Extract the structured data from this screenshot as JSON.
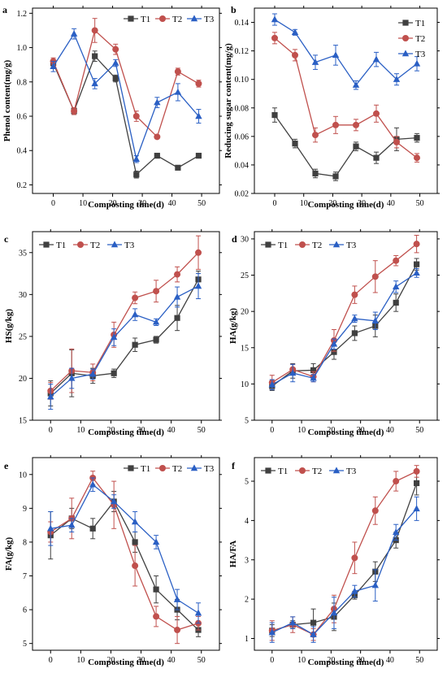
{
  "colors": {
    "T1": "#404040",
    "T2": "#c0504d",
    "T3": "#2a5fc4"
  },
  "chart_data": [
    {
      "panel": "a",
      "type": "line",
      "xlabel": "Composting time(d)",
      "ylabel": "Phenol content(mg/g)",
      "xlim": [
        -7,
        56
      ],
      "ylim": [
        0.15,
        1.23
      ],
      "xticks": [
        0,
        10,
        20,
        30,
        40,
        50
      ],
      "yticks": [
        0.2,
        0.4,
        0.6,
        0.8,
        1.0,
        1.2
      ],
      "ytick_labels": [
        "0.2",
        "0.4",
        "0.6",
        "0.8",
        "1.0",
        "1.2"
      ],
      "x": [
        0,
        7,
        14,
        21,
        28,
        35,
        42,
        49
      ],
      "legend": "top-right-row",
      "series": [
        {
          "name": "T1",
          "marker": "square",
          "values": [
            0.91,
            0.63,
            0.95,
            0.82,
            0.26,
            0.37,
            0.3,
            0.37
          ],
          "errors": [
            0.02,
            0.02,
            0.03,
            0.02,
            0.02,
            0.01,
            0.01,
            0.01
          ]
        },
        {
          "name": "T2",
          "marker": "circle",
          "values": [
            0.92,
            0.63,
            1.1,
            0.99,
            0.6,
            0.48,
            0.86,
            0.79
          ],
          "errors": [
            0.02,
            0.02,
            0.07,
            0.03,
            0.03,
            0.01,
            0.02,
            0.02
          ]
        },
        {
          "name": "T3",
          "marker": "triangle",
          "values": [
            0.89,
            1.08,
            0.79,
            0.91,
            0.35,
            0.68,
            0.74,
            0.6
          ],
          "errors": [
            0.03,
            0.03,
            0.03,
            0.02,
            0.02,
            0.03,
            0.05,
            0.04
          ]
        }
      ]
    },
    {
      "panel": "b",
      "type": "line",
      "xlabel": "Composting time(d)",
      "ylabel": "Reducing sugar content(mg/g)",
      "xlim": [
        -7,
        56
      ],
      "ylim": [
        0.02,
        0.15
      ],
      "xticks": [
        0,
        10,
        20,
        30,
        40,
        50
      ],
      "yticks": [
        0.02,
        0.04,
        0.06,
        0.08,
        0.1,
        0.12,
        0.14
      ],
      "ytick_labels": [
        "0.02",
        "0.04",
        "0.06",
        "0.08",
        "0.10",
        "0.12",
        "0.14"
      ],
      "x": [
        0,
        7,
        14,
        21,
        28,
        35,
        42,
        49
      ],
      "legend": "top-right-column",
      "series": [
        {
          "name": "T1",
          "marker": "square",
          "values": [
            0.075,
            0.055,
            0.034,
            0.032,
            0.053,
            0.045,
            0.058,
            0.059
          ],
          "errors": [
            0.005,
            0.003,
            0.003,
            0.003,
            0.003,
            0.004,
            0.008,
            0.003
          ]
        },
        {
          "name": "T2",
          "marker": "circle",
          "values": [
            0.129,
            0.117,
            0.061,
            0.068,
            0.068,
            0.076,
            0.056,
            0.045
          ],
          "errors": [
            0.004,
            0.004,
            0.005,
            0.006,
            0.004,
            0.006,
            0.004,
            0.003
          ]
        },
        {
          "name": "T3",
          "marker": "triangle",
          "values": [
            0.142,
            0.133,
            0.112,
            0.117,
            0.096,
            0.114,
            0.1,
            0.111
          ],
          "errors": [
            0.004,
            0.002,
            0.005,
            0.007,
            0.003,
            0.005,
            0.004,
            0.005
          ]
        }
      ]
    },
    {
      "panel": "c",
      "type": "line",
      "xlabel": "Composting time(d)",
      "ylabel": "HS(g/kg)",
      "xlim": [
        -6,
        56
      ],
      "ylim": [
        15,
        37.5
      ],
      "xticks": [
        0,
        10,
        20,
        30,
        40,
        50
      ],
      "yticks": [
        15,
        20,
        25,
        30,
        35
      ],
      "ytick_labels": [
        "15",
        "20",
        "25",
        "30",
        "35"
      ],
      "x": [
        0,
        7,
        14,
        21,
        28,
        35,
        42,
        49
      ],
      "legend": "top-left-row",
      "series": [
        {
          "name": "T1",
          "marker": "square",
          "values": [
            18.2,
            20.6,
            20.3,
            20.6,
            24.0,
            24.6,
            27.2,
            31.8
          ],
          "errors": [
            1.5,
            2.8,
            0.9,
            0.5,
            0.8,
            0.4,
            1.5,
            1.0
          ]
        },
        {
          "name": "T2",
          "marker": "circle",
          "values": [
            18.5,
            20.9,
            20.7,
            25.2,
            29.6,
            30.4,
            32.4,
            35.0
          ],
          "errors": [
            1.0,
            2.6,
            1.0,
            1.5,
            0.7,
            1.3,
            0.9,
            2.0
          ]
        },
        {
          "name": "T3",
          "marker": "triangle",
          "values": [
            17.8,
            20.0,
            20.5,
            24.9,
            27.6,
            26.7,
            29.7,
            31.0
          ],
          "errors": [
            1.5,
            1.2,
            0.6,
            1.0,
            0.7,
            0.4,
            1.2,
            1.5
          ]
        }
      ]
    },
    {
      "panel": "d",
      "type": "line",
      "xlabel": "Composting time(d)",
      "ylabel": "HA(g/kg)",
      "xlim": [
        -6,
        56
      ],
      "ylim": [
        5,
        31
      ],
      "xticks": [
        0,
        10,
        20,
        30,
        40,
        50
      ],
      "yticks": [
        5,
        10,
        15,
        20,
        25,
        30
      ],
      "ytick_labels": [
        "5",
        "10",
        "15",
        "20",
        "25",
        "30"
      ],
      "x": [
        0,
        7,
        14,
        21,
        28,
        35,
        42,
        49
      ],
      "legend": "top-left-row",
      "series": [
        {
          "name": "T1",
          "marker": "square",
          "values": [
            9.7,
            11.8,
            11.9,
            14.4,
            17.0,
            18.0,
            21.2,
            26.5
          ],
          "errors": [
            0.6,
            1.0,
            0.9,
            1.0,
            1.0,
            1.5,
            1.2,
            0.8
          ]
        },
        {
          "name": "T2",
          "marker": "circle",
          "values": [
            10.2,
            12.0,
            11.0,
            16.0,
            22.3,
            24.8,
            27.0,
            29.3
          ],
          "errors": [
            1.0,
            0.7,
            0.7,
            1.5,
            1.2,
            2.2,
            0.7,
            1.2
          ]
        },
        {
          "name": "T3",
          "marker": "triangle",
          "values": [
            9.9,
            11.5,
            10.8,
            15.5,
            19.0,
            18.7,
            23.4,
            25.3
          ],
          "errors": [
            0.7,
            1.2,
            0.5,
            0.7,
            0.5,
            1.2,
            0.8,
            0.6
          ]
        }
      ]
    },
    {
      "panel": "e",
      "type": "line",
      "xlabel": "Composting time(d)",
      "ylabel": "FA(g/kg)",
      "xlim": [
        -6,
        56
      ],
      "ylim": [
        4.8,
        10.5
      ],
      "xticks": [
        0,
        10,
        20,
        30,
        40,
        50
      ],
      "yticks": [
        5,
        6,
        7,
        8,
        9,
        10
      ],
      "ytick_labels": [
        "5",
        "6",
        "7",
        "8",
        "9",
        "10"
      ],
      "x": [
        0,
        7,
        14,
        21,
        28,
        35,
        42,
        49
      ],
      "legend": "top-right-row",
      "series": [
        {
          "name": "T1",
          "marker": "square",
          "values": [
            8.2,
            8.7,
            8.4,
            9.2,
            8.0,
            6.6,
            6.0,
            5.4
          ],
          "errors": [
            0.7,
            0.3,
            0.3,
            0.3,
            0.3,
            0.4,
            0.3,
            0.2
          ]
        },
        {
          "name": "T2",
          "marker": "circle",
          "values": [
            8.3,
            8.7,
            9.9,
            9.1,
            7.3,
            5.8,
            5.4,
            5.6
          ],
          "errors": [
            0.3,
            0.6,
            0.2,
            0.7,
            0.6,
            0.3,
            0.4,
            0.2
          ]
        },
        {
          "name": "T3",
          "marker": "triangle",
          "values": [
            8.4,
            8.5,
            9.7,
            9.2,
            8.6,
            8.0,
            6.3,
            5.9
          ],
          "errors": [
            0.5,
            0.2,
            0.2,
            0.2,
            0.3,
            0.2,
            0.3,
            0.3
          ]
        }
      ]
    },
    {
      "panel": "f",
      "type": "line",
      "xlabel": "Composting time(d)",
      "ylabel": "HA/FA",
      "xlim": [
        -6,
        56
      ],
      "ylim": [
        0.7,
        5.6
      ],
      "xticks": [
        0,
        10,
        20,
        30,
        40,
        50
      ],
      "yticks": [
        1,
        2,
        3,
        4,
        5
      ],
      "ytick_labels": [
        "1",
        "2",
        "3",
        "4",
        "5"
      ],
      "x": [
        0,
        7,
        14,
        21,
        28,
        35,
        42,
        49
      ],
      "legend": "top-left-row",
      "series": [
        {
          "name": "T1",
          "marker": "square",
          "values": [
            1.2,
            1.35,
            1.4,
            1.55,
            2.1,
            2.7,
            3.5,
            4.95
          ],
          "errors": [
            0.15,
            0.1,
            0.35,
            0.35,
            0.1,
            0.25,
            0.2,
            0.3
          ]
        },
        {
          "name": "T2",
          "marker": "circle",
          "values": [
            1.2,
            1.35,
            1.1,
            1.75,
            3.05,
            4.25,
            5.0,
            5.25
          ],
          "errors": [
            0.25,
            0.2,
            0.15,
            0.35,
            0.4,
            0.35,
            0.25,
            0.15
          ]
        },
        {
          "name": "T3",
          "marker": "triangle",
          "values": [
            1.15,
            1.4,
            1.1,
            1.65,
            2.2,
            2.35,
            3.7,
            4.3
          ],
          "errors": [
            0.25,
            0.15,
            0.2,
            0.4,
            0.15,
            0.4,
            0.2,
            0.3
          ]
        }
      ]
    }
  ]
}
